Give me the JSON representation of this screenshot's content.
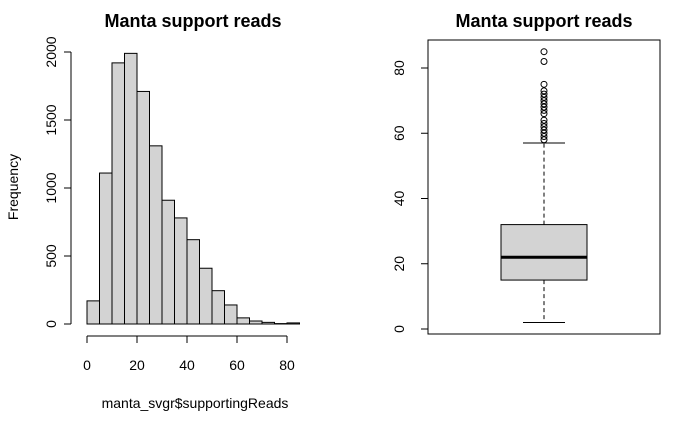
{
  "chart_data": [
    {
      "type": "bar",
      "subtype": "histogram",
      "title": "Manta support reads",
      "xlabel": "manta_svgr$supportingReads",
      "ylabel": "Frequency",
      "bin_edges": [
        0,
        5,
        10,
        15,
        20,
        25,
        30,
        35,
        40,
        45,
        50,
        55,
        60,
        65,
        70,
        75,
        80,
        85
      ],
      "values": [
        170,
        1110,
        1920,
        1990,
        1710,
        1310,
        910,
        780,
        620,
        410,
        245,
        140,
        45,
        22,
        12,
        3,
        8
      ],
      "xlim": [
        0,
        85
      ],
      "ylim": [
        0,
        2000
      ],
      "xticks": [
        "0",
        "20",
        "40",
        "60",
        "80"
      ],
      "yticks": [
        "0",
        "500",
        "1000",
        "1500",
        "2000"
      ],
      "grid": false
    },
    {
      "type": "box",
      "title": "Manta support reads",
      "ylim": [
        0,
        85
      ],
      "yticks": [
        "0",
        "20",
        "40",
        "60",
        "80"
      ],
      "min": 2,
      "q1": 15,
      "median": 22,
      "q3": 32,
      "whisker_high": 57,
      "outliers": [
        58,
        59,
        60,
        61,
        62,
        63,
        64,
        66,
        67,
        68,
        69,
        70,
        71,
        72,
        73,
        75,
        82,
        85
      ],
      "grid": false
    }
  ]
}
